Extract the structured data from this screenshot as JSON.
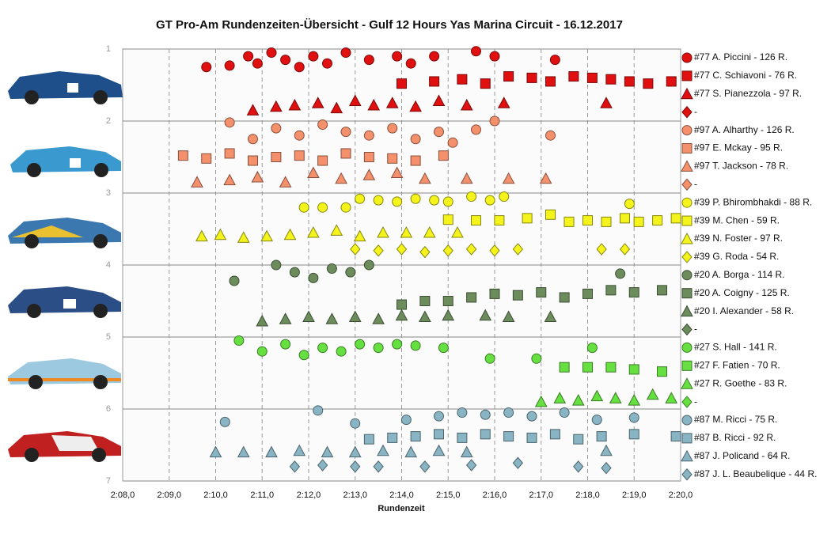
{
  "chart_data": {
    "type": "scatter",
    "title": "GT Pro-Am  Rundenzeiten-Übersicht  - Gulf  12 Hours Yas  Marina  Circuit  - 16.12.2017",
    "x_label": "Rundenzeit",
    "xlim": [
      128,
      140
    ],
    "xticks": [
      {
        "value": 128,
        "label": "2:08,0"
      },
      {
        "value": 129,
        "label": "2:09,0"
      },
      {
        "value": 130,
        "label": "2:10,0"
      },
      {
        "value": 131,
        "label": "2:11,0"
      },
      {
        "value": 132,
        "label": "2:12,0"
      },
      {
        "value": 133,
        "label": "2:13,0"
      },
      {
        "value": 134,
        "label": "2:14,0"
      },
      {
        "value": 135,
        "label": "2:15,0"
      },
      {
        "value": 136,
        "label": "2:16,0"
      },
      {
        "value": 137,
        "label": "2:17,0"
      },
      {
        "value": 138,
        "label": "2:18,0"
      },
      {
        "value": 139,
        "label": "2:19,0"
      },
      {
        "value": 140,
        "label": "2:20,0"
      }
    ],
    "ylim": [
      1,
      7
    ],
    "y_reversed": true,
    "yticks": [
      1,
      2,
      3,
      4,
      5,
      6,
      7
    ],
    "grid": true,
    "legend": "right",
    "series": [
      {
        "name": "#77 A. Piccini - 126 R.",
        "color": "#e01010",
        "marker": "circle",
        "x": [
          129.8,
          130.3,
          130.7,
          130.9,
          131.2,
          131.5,
          131.8,
          132.1,
          132.4,
          132.8,
          133.3,
          133.9,
          134.2,
          134.7,
          135.6,
          136.0,
          137.3
        ],
        "y": [
          1.25,
          1.23,
          1.1,
          1.2,
          1.05,
          1.15,
          1.25,
          1.1,
          1.2,
          1.05,
          1.15,
          1.1,
          1.2,
          1.1,
          1.03,
          1.1,
          1.15
        ]
      },
      {
        "name": "#77 C. Schiavoni - 76 R.",
        "color": "#e01010",
        "marker": "square",
        "x": [
          134.0,
          134.7,
          135.3,
          135.8,
          136.3,
          136.8,
          137.2,
          137.7,
          138.1,
          138.5,
          138.9,
          139.3,
          139.8
        ],
        "y": [
          1.48,
          1.45,
          1.42,
          1.48,
          1.38,
          1.4,
          1.45,
          1.38,
          1.4,
          1.42,
          1.45,
          1.48,
          1.45
        ]
      },
      {
        "name": "#77 S. Pianezzola - 97 R.",
        "color": "#e01010",
        "marker": "triangle",
        "x": [
          130.8,
          131.3,
          131.7,
          132.2,
          132.6,
          133.0,
          133.4,
          133.8,
          134.3,
          134.8,
          135.4,
          136.2,
          138.4
        ],
        "y": [
          1.85,
          1.8,
          1.78,
          1.75,
          1.82,
          1.72,
          1.78,
          1.75,
          1.8,
          1.72,
          1.78,
          1.75,
          1.75
        ]
      },
      {
        "name": "-",
        "color": "#e01010",
        "marker": "diamond",
        "x": [],
        "y": []
      },
      {
        "name": "#97 A. Alharthy - 126 R.",
        "color": "#f4906c",
        "marker": "circle",
        "x": [
          130.3,
          130.8,
          131.3,
          131.8,
          132.3,
          132.8,
          133.3,
          133.8,
          134.3,
          134.8,
          135.1,
          135.6,
          136.0,
          137.2
        ],
        "y": [
          2.02,
          2.25,
          2.1,
          2.2,
          2.05,
          2.15,
          2.2,
          2.1,
          2.25,
          2.15,
          2.3,
          2.12,
          2.0,
          2.2
        ]
      },
      {
        "name": "#97 E. Mckay - 95 R.",
        "color": "#f4906c",
        "marker": "square",
        "x": [
          129.3,
          129.8,
          130.3,
          130.8,
          131.3,
          131.8,
          132.3,
          132.8,
          133.3,
          133.8,
          134.3,
          134.9
        ],
        "y": [
          2.48,
          2.52,
          2.45,
          2.55,
          2.5,
          2.48,
          2.55,
          2.45,
          2.5,
          2.52,
          2.55,
          2.48
        ]
      },
      {
        "name": "#97 T. Jackson - 78 R.",
        "color": "#f4906c",
        "marker": "triangle",
        "x": [
          129.6,
          130.3,
          130.9,
          131.5,
          132.1,
          132.7,
          133.3,
          133.9,
          134.5,
          135.4,
          136.3,
          137.1
        ],
        "y": [
          2.85,
          2.82,
          2.78,
          2.85,
          2.72,
          2.8,
          2.75,
          2.72,
          2.8,
          2.8,
          2.8,
          2.8
        ]
      },
      {
        "name": "-",
        "color": "#f4906c",
        "marker": "diamond",
        "x": [],
        "y": []
      },
      {
        "name": "#39 P. Bhirombhakdi - 88 R.",
        "color": "#f4f41c",
        "marker": "circle",
        "x": [
          131.9,
          132.3,
          132.8,
          133.1,
          133.5,
          133.9,
          134.3,
          134.7,
          135.0,
          135.5,
          135.9,
          136.2,
          138.9
        ],
        "y": [
          3.2,
          3.2,
          3.2,
          3.08,
          3.1,
          3.12,
          3.08,
          3.1,
          3.12,
          3.05,
          3.1,
          3.05,
          3.15
        ]
      },
      {
        "name": "#39 M. Chen - 59 R.",
        "color": "#f4f41c",
        "marker": "square",
        "x": [
          135.0,
          135.6,
          136.1,
          136.7,
          137.2,
          137.6,
          138.0,
          138.4,
          138.8,
          139.1,
          139.5,
          139.9
        ],
        "y": [
          3.37,
          3.38,
          3.38,
          3.35,
          3.3,
          3.4,
          3.38,
          3.4,
          3.35,
          3.4,
          3.38,
          3.35
        ]
      },
      {
        "name": "#39 N. Foster - 97 R.",
        "color": "#f4f41c",
        "marker": "triangle",
        "x": [
          129.7,
          130.1,
          130.6,
          131.1,
          131.6,
          132.1,
          132.6,
          133.1,
          133.6,
          134.1,
          134.6,
          135.2
        ],
        "y": [
          3.6,
          3.58,
          3.62,
          3.6,
          3.58,
          3.55,
          3.52,
          3.6,
          3.55,
          3.55,
          3.55,
          3.55
        ]
      },
      {
        "name": "#39 G. Roda - 54 R.",
        "color": "#f4f41c",
        "marker": "diamond",
        "x": [
          133.0,
          133.5,
          134.0,
          134.5,
          135.0,
          135.5,
          136.0,
          136.5,
          138.3,
          138.8
        ],
        "y": [
          3.78,
          3.8,
          3.78,
          3.82,
          3.8,
          3.78,
          3.8,
          3.78,
          3.78,
          3.78
        ]
      },
      {
        "name": "#20 A. Borga - 114 R.",
        "color": "#6c8c5c",
        "marker": "circle",
        "x": [
          130.4,
          131.3,
          131.7,
          132.1,
          132.5,
          132.9,
          133.3,
          138.7
        ],
        "y": [
          4.22,
          4.0,
          4.1,
          4.18,
          4.05,
          4.1,
          4.0,
          4.12
        ]
      },
      {
        "name": "#20 A. Coigny - 125 R.",
        "color": "#6c8c5c",
        "marker": "square",
        "x": [
          134.0,
          134.5,
          135.0,
          135.5,
          136.0,
          136.5,
          137.0,
          137.5,
          138.0,
          138.5,
          139.0,
          139.6
        ],
        "y": [
          4.55,
          4.5,
          4.5,
          4.45,
          4.4,
          4.42,
          4.38,
          4.45,
          4.4,
          4.35,
          4.38,
          4.35
        ]
      },
      {
        "name": "#20 I. Alexander - 58 R.",
        "color": "#6c8c5c",
        "marker": "triangle",
        "x": [
          131.0,
          131.5,
          132.0,
          132.5,
          133.0,
          133.5,
          134.0,
          134.5,
          135.0,
          135.8,
          136.3,
          137.2
        ],
        "y": [
          4.78,
          4.75,
          4.72,
          4.75,
          4.72,
          4.75,
          4.7,
          4.72,
          4.7,
          4.7,
          4.72,
          4.72
        ]
      },
      {
        "name": "-",
        "color": "#6c8c5c",
        "marker": "diamond",
        "x": [],
        "y": []
      },
      {
        "name": "#27 S. Hall - 141 R.",
        "color": "#66e040",
        "marker": "circle",
        "x": [
          130.5,
          131.0,
          131.5,
          131.9,
          132.3,
          132.7,
          133.1,
          133.5,
          133.9,
          134.3,
          134.9,
          135.9,
          136.9,
          138.1
        ],
        "y": [
          5.05,
          5.2,
          5.1,
          5.25,
          5.15,
          5.2,
          5.1,
          5.15,
          5.1,
          5.12,
          5.15,
          5.3,
          5.3,
          5.15
        ]
      },
      {
        "name": "#27 F. Fatien - 70 R.",
        "color": "#66e040",
        "marker": "square",
        "x": [
          137.5,
          138.0,
          138.5,
          139.0,
          139.6
        ],
        "y": [
          5.42,
          5.42,
          5.42,
          5.45,
          5.48
        ]
      },
      {
        "name": "#27 R. Goethe - 83 R.",
        "color": "#66e040",
        "marker": "triangle",
        "x": [
          137.0,
          137.4,
          137.8,
          138.2,
          138.6,
          139.0,
          139.4,
          139.8
        ],
        "y": [
          5.9,
          5.85,
          5.88,
          5.82,
          5.85,
          5.88,
          5.8,
          5.85
        ]
      },
      {
        "name": "-",
        "color": "#66e040",
        "marker": "diamond",
        "x": [],
        "y": []
      },
      {
        "name": "#87 M. Ricci - 75 R.",
        "color": "#88b4c4",
        "marker": "circle",
        "x": [
          130.2,
          132.2,
          133.0,
          134.1,
          134.8,
          135.3,
          135.8,
          136.3,
          136.8,
          137.5,
          138.2,
          139.0
        ],
        "y": [
          6.18,
          6.02,
          6.2,
          6.15,
          6.1,
          6.05,
          6.08,
          6.05,
          6.1,
          6.05,
          6.15,
          6.12
        ]
      },
      {
        "name": "#87 B. Ricci - 92 R.",
        "color": "#88b4c4",
        "marker": "square",
        "x": [
          133.3,
          133.8,
          134.3,
          134.8,
          135.3,
          135.8,
          136.3,
          136.8,
          137.3,
          137.8,
          138.3,
          139.0,
          139.9
        ],
        "y": [
          6.42,
          6.4,
          6.38,
          6.35,
          6.4,
          6.35,
          6.38,
          6.4,
          6.35,
          6.42,
          6.38,
          6.35,
          6.38
        ]
      },
      {
        "name": "#87 J. Policand - 64 R.",
        "color": "#88b4c4",
        "marker": "triangle",
        "x": [
          130.0,
          130.6,
          131.2,
          131.8,
          132.4,
          133.0,
          133.6,
          134.2,
          134.8,
          135.4,
          138.4
        ],
        "y": [
          6.6,
          6.6,
          6.6,
          6.58,
          6.6,
          6.6,
          6.58,
          6.6,
          6.58,
          6.6,
          6.58
        ]
      },
      {
        "name": "#87 J. L. Beaubelique - 44 R.",
        "color": "#88b4c4",
        "marker": "diamond",
        "x": [
          131.7,
          132.3,
          133.0,
          133.5,
          134.5,
          135.5,
          136.5,
          137.8,
          138.4
        ],
        "y": [
          6.8,
          6.78,
          6.8,
          6.8,
          6.8,
          6.78,
          6.75,
          6.8,
          6.82
        ]
      }
    ]
  }
}
